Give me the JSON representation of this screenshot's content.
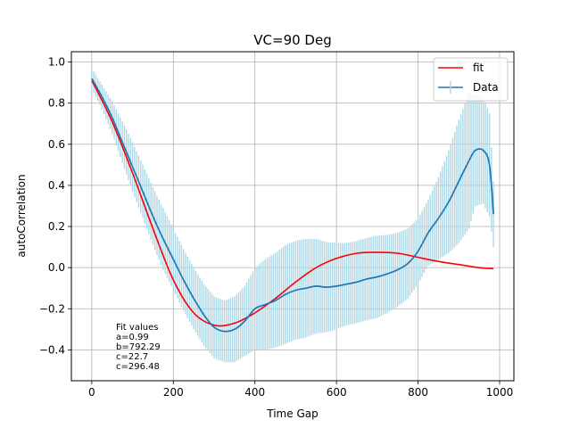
{
  "chart_data": {
    "type": "line",
    "title": "VC=90 Deg",
    "xlabel": "Time Gap",
    "ylabel": "autoCorrelation",
    "xlim": [
      -50,
      1035
    ],
    "ylim": [
      -0.55,
      1.05
    ],
    "xticks": [
      0,
      200,
      400,
      600,
      800,
      1000
    ],
    "yticks": [
      -0.4,
      -0.2,
      0.0,
      0.2,
      0.4,
      0.6,
      0.8,
      1.0
    ],
    "xtick_labels": [
      "0",
      "200",
      "400",
      "600",
      "800",
      "1000"
    ],
    "ytick_labels": [
      "−0.4",
      "−0.2",
      "0.0",
      "0.2",
      "0.4",
      "0.6",
      "0.8",
      "1.0"
    ],
    "grid": true,
    "legend": {
      "placement": "top-right",
      "entries": [
        "fit",
        "Data"
      ]
    },
    "annotation": {
      "lines": [
        "Fit values",
        "a=0.99",
        "b=792.29",
        "c=22.7",
        "c=296.48"
      ]
    },
    "series": [
      {
        "name": "Data",
        "color": "#1f77b4",
        "error_color": "#add8e6",
        "x": [
          0,
          25,
          50,
          75,
          100,
          125,
          150,
          175,
          200,
          225,
          250,
          275,
          300,
          325,
          350,
          375,
          400,
          425,
          450,
          475,
          500,
          525,
          550,
          575,
          600,
          625,
          650,
          675,
          700,
          725,
          750,
          775,
          800,
          825,
          850,
          875,
          900,
          925,
          940,
          960,
          975,
          985
        ],
        "y": [
          0.92,
          0.83,
          0.73,
          0.61,
          0.49,
          0.37,
          0.25,
          0.14,
          0.04,
          -0.06,
          -0.15,
          -0.23,
          -0.29,
          -0.31,
          -0.3,
          -0.26,
          -0.2,
          -0.18,
          -0.16,
          -0.13,
          -0.11,
          -0.1,
          -0.09,
          -0.095,
          -0.09,
          -0.08,
          -0.07,
          -0.055,
          -0.045,
          -0.03,
          -0.01,
          0.02,
          0.08,
          0.17,
          0.24,
          0.32,
          0.42,
          0.52,
          0.57,
          0.57,
          0.5,
          0.26
        ],
        "err": [
          0.05,
          0.06,
          0.08,
          0.1,
          0.12,
          0.13,
          0.14,
          0.15,
          0.15,
          0.15,
          0.15,
          0.15,
          0.15,
          0.15,
          0.16,
          0.17,
          0.2,
          0.22,
          0.23,
          0.24,
          0.24,
          0.24,
          0.23,
          0.22,
          0.21,
          0.2,
          0.2,
          0.2,
          0.2,
          0.19,
          0.18,
          0.17,
          0.16,
          0.16,
          0.2,
          0.25,
          0.3,
          0.33,
          0.27,
          0.26,
          0.25,
          0.16
        ]
      },
      {
        "name": "fit",
        "color": "#ff0000",
        "x": [
          0,
          50,
          100,
          150,
          200,
          250,
          300,
          350,
          400,
          450,
          500,
          550,
          600,
          650,
          700,
          750,
          800,
          850,
          900,
          950,
          985
        ],
        "y": [
          0.91,
          0.71,
          0.46,
          0.19,
          -0.06,
          -0.22,
          -0.28,
          -0.27,
          -0.22,
          -0.15,
          -0.07,
          0.0,
          0.045,
          0.07,
          0.075,
          0.07,
          0.05,
          0.03,
          0.015,
          0.0,
          -0.005
        ]
      }
    ]
  }
}
